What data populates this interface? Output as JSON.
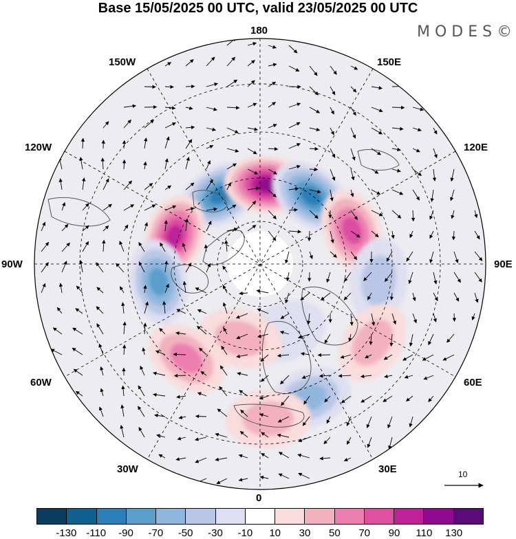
{
  "title": "Base 15/05/2025 00 UTC, valid 23/05/2025 00 UTC",
  "brand": "MODES©",
  "longitude_labels": {
    "lon_180": "180",
    "lon_150w": "150W",
    "lon_150e": "150E",
    "lon_120w": "120W",
    "lon_120e": "120E",
    "lon_90w": "90W",
    "lon_90e": "90E",
    "lon_60w": "60W",
    "lon_60e": "60E",
    "lon_30w": "30W",
    "lon_30e": "30E",
    "lon_0": "0"
  },
  "vector_reference": "10",
  "colorbar": {
    "ticks": [
      "-130",
      "-110",
      "-90",
      "-70",
      "-50",
      "-30",
      "-10",
      "10",
      "30",
      "50",
      "70",
      "90",
      "110",
      "130"
    ],
    "colors": [
      "#0a3d5e",
      "#0f5f8f",
      "#2b7fb8",
      "#5a9fcc",
      "#8fb6dd",
      "#b8c7e6",
      "#dedff0",
      "#ffffff",
      "#f9dcdc",
      "#f3b1c0",
      "#ec7fb0",
      "#de4ea1",
      "#be2198",
      "#8f0a8e",
      "#5c0a77"
    ]
  },
  "anomalies": [
    {
      "lon": -150,
      "lat": 57,
      "value": -100
    },
    {
      "lon": 175,
      "lat": 57,
      "value": 120
    },
    {
      "lon": 143,
      "lat": 55,
      "value": -100
    },
    {
      "lon": 110,
      "lat": 50,
      "value": 80
    },
    {
      "lon": 82,
      "lat": 42,
      "value": -30
    },
    {
      "lon": -108,
      "lat": 53,
      "value": 100
    },
    {
      "lon": -80,
      "lat": 48,
      "value": -80
    },
    {
      "lon": -38,
      "lat": 42,
      "value": 60
    },
    {
      "lon": 55,
      "lat": 36,
      "value": 30
    },
    {
      "lon": 20,
      "lat": 34,
      "value": -50
    },
    {
      "lon": 3,
      "lat": 30,
      "value": 40
    },
    {
      "lon": 20,
      "lat": 60,
      "value": -20
    },
    {
      "lon": -15,
      "lat": 58,
      "value": 30
    }
  ]
}
